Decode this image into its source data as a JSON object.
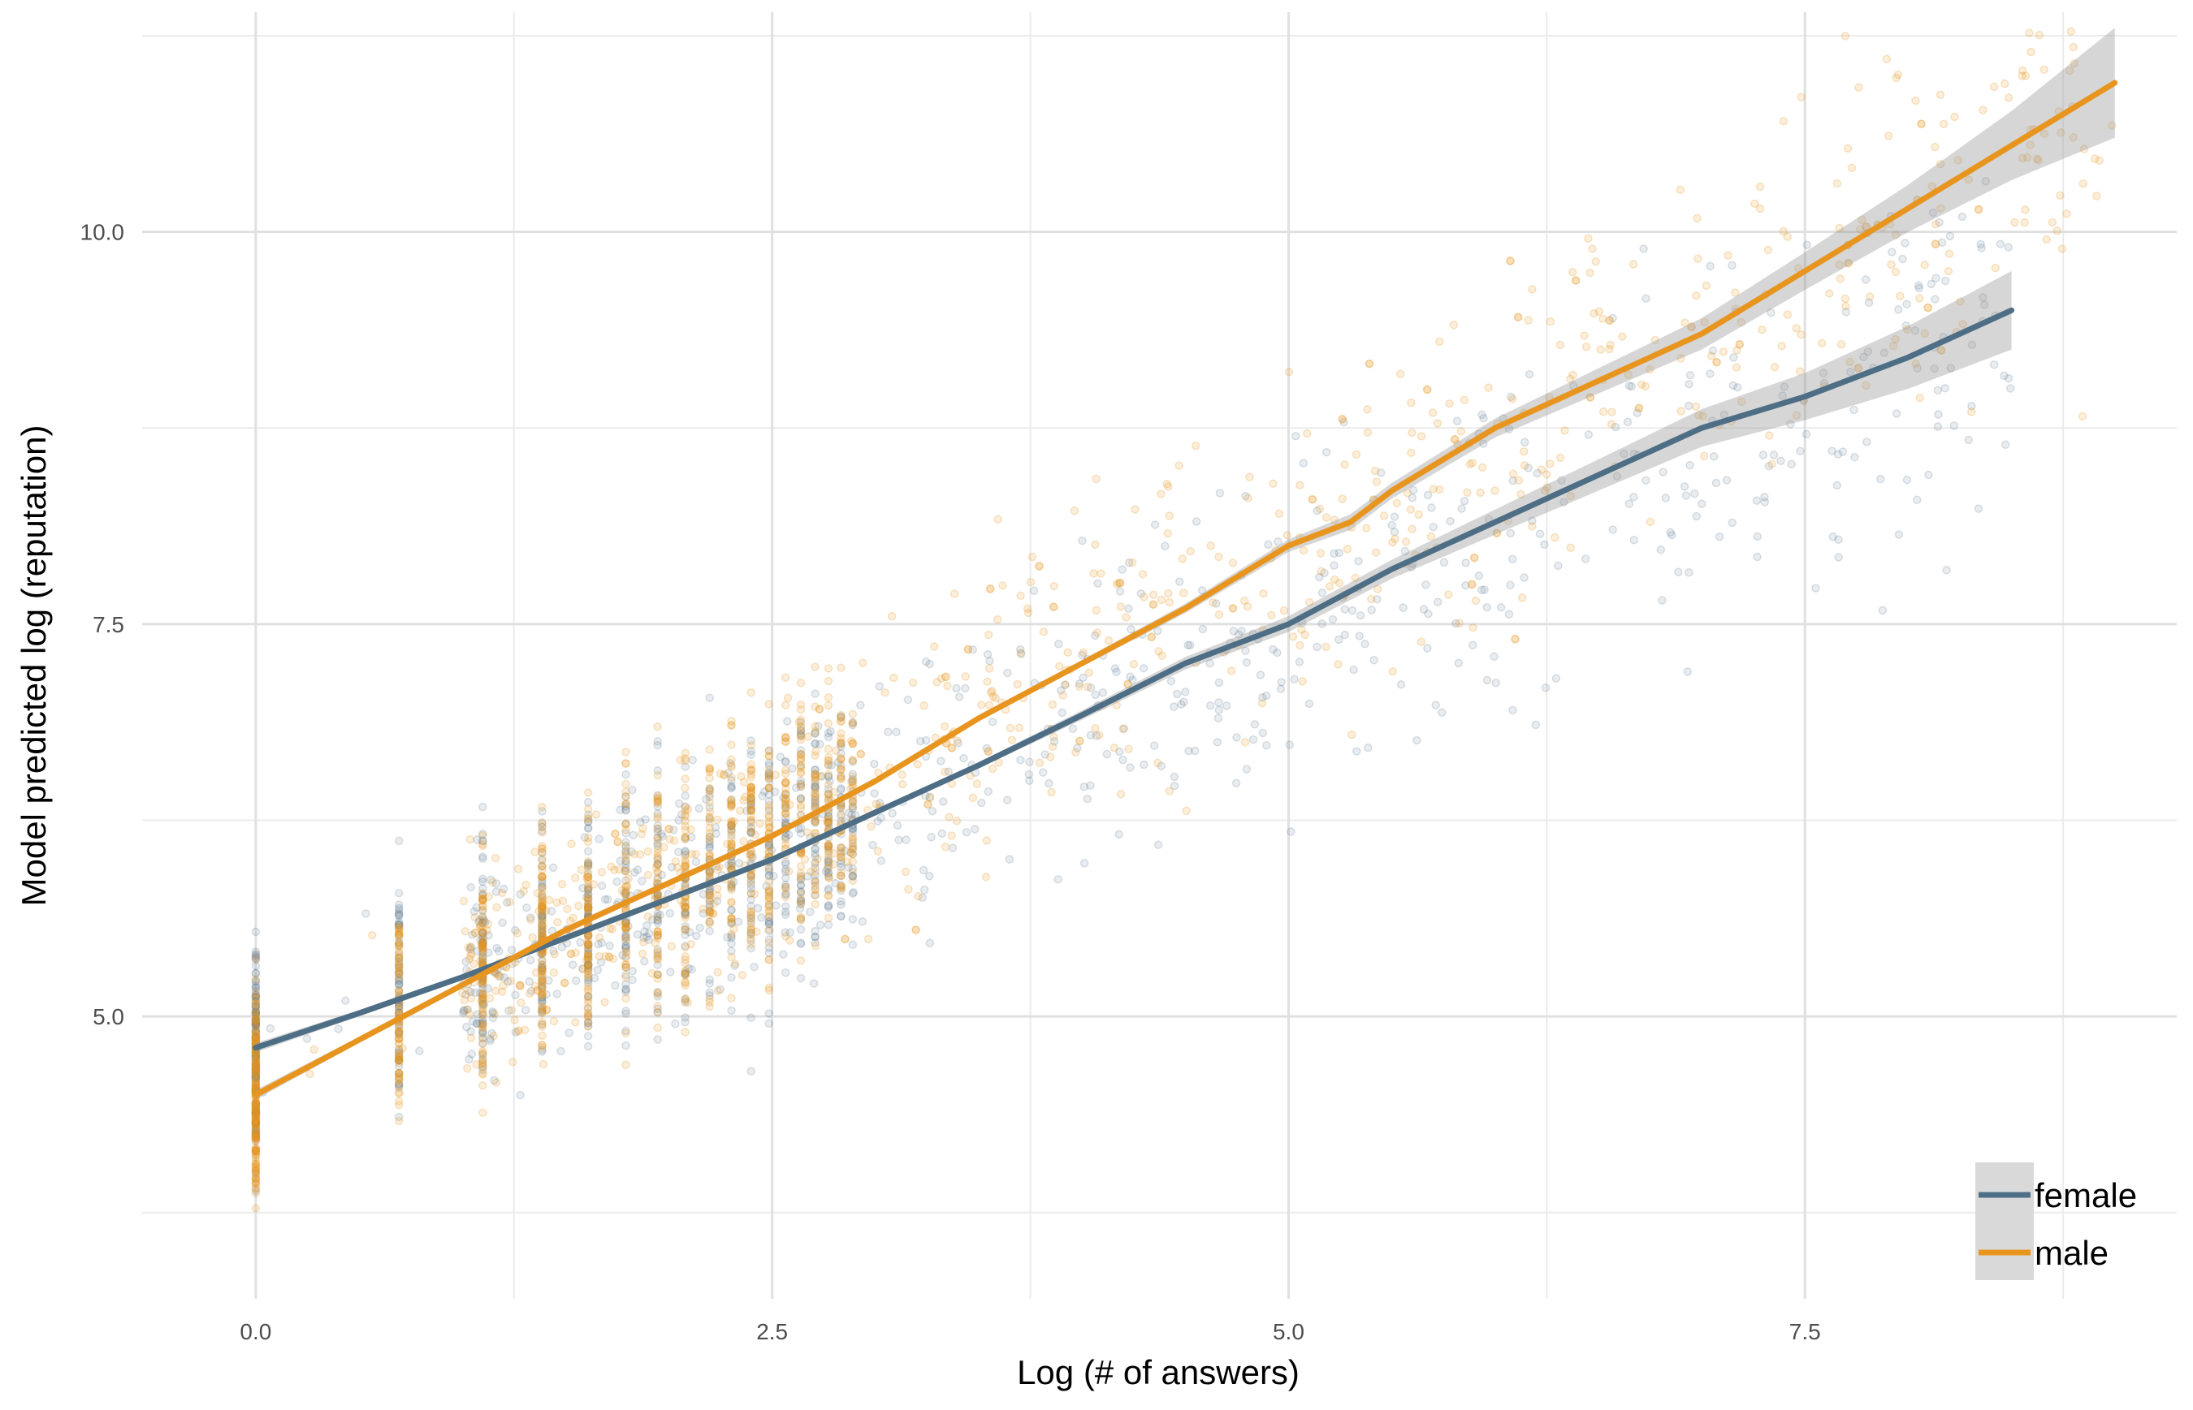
{
  "chart_data": {
    "type": "scatter",
    "xlabel": "Log (# of answers)",
    "ylabel": "Model predicted log (reputation)",
    "xlim": [
      -0.55,
      9.3
    ],
    "ylim": [
      3.2,
      11.4
    ],
    "x_ticks": [
      0.0,
      2.5,
      5.0,
      7.5
    ],
    "x_tick_labels": [
      "0.0",
      "2.5",
      "5.0",
      "7.5"
    ],
    "x_minor_ticks": [
      1.25,
      3.75,
      6.25,
      8.75
    ],
    "y_ticks": [
      5.0,
      7.5,
      10.0
    ],
    "y_tick_labels": [
      "5.0",
      "7.5",
      "10.0"
    ],
    "y_minor_ticks": [
      3.75,
      6.25,
      8.75,
      11.25
    ],
    "grid": true,
    "legend_position": "bottom-right",
    "series": [
      {
        "name": "female",
        "color": "#4e6e86",
        "fit": {
          "x": [
            0.0,
            0.5,
            1.0,
            1.5,
            2.0,
            2.5,
            3.0,
            3.5,
            4.0,
            4.5,
            5.0,
            5.5,
            6.0,
            6.5,
            7.0,
            7.5,
            8.0,
            8.5
          ],
          "y": [
            4.8,
            5.02,
            5.25,
            5.5,
            5.75,
            6.0,
            6.3,
            6.6,
            6.92,
            7.25,
            7.5,
            7.85,
            8.15,
            8.45,
            8.75,
            8.95,
            9.2,
            9.5
          ],
          "band_halfwidth": [
            0.03,
            0.02,
            0.02,
            0.02,
            0.02,
            0.02,
            0.02,
            0.02,
            0.03,
            0.04,
            0.05,
            0.06,
            0.08,
            0.1,
            0.12,
            0.15,
            0.2,
            0.25
          ]
        }
      },
      {
        "name": "male",
        "color": "#e8951f",
        "fit": {
          "x": [
            0.0,
            0.5,
            1.0,
            1.5,
            2.0,
            2.5,
            3.0,
            3.5,
            4.0,
            4.5,
            5.0,
            5.3,
            5.5,
            6.0,
            6.5,
            7.0,
            7.5,
            8.0,
            8.5,
            9.0
          ],
          "y": [
            4.5,
            4.85,
            5.2,
            5.55,
            5.85,
            6.15,
            6.5,
            6.9,
            7.25,
            7.6,
            8.0,
            8.15,
            8.35,
            8.75,
            9.05,
            9.35,
            9.75,
            10.15,
            10.55,
            10.95
          ],
          "band_halfwidth": [
            0.03,
            0.02,
            0.02,
            0.02,
            0.02,
            0.02,
            0.02,
            0.02,
            0.02,
            0.03,
            0.04,
            0.05,
            0.05,
            0.06,
            0.08,
            0.1,
            0.12,
            0.15,
            0.22,
            0.35
          ]
        }
      }
    ]
  }
}
